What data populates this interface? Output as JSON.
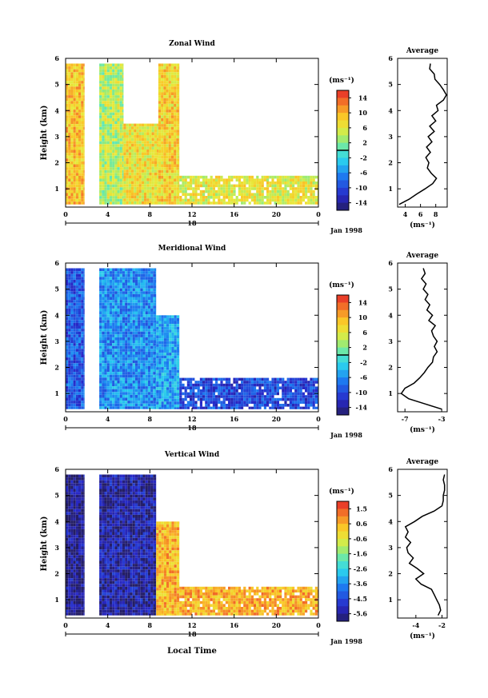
{
  "chart_data": [
    {
      "type": "heatmap",
      "title": "Zonal Wind",
      "ylabel": "Height (km)",
      "ylim": [
        0.3,
        6.0
      ],
      "y_ticks": [
        "1",
        "2",
        "3",
        "4",
        "5",
        "6"
      ],
      "x_ticks": [
        "0",
        "4",
        "8",
        "12",
        "16",
        "20",
        "0"
      ],
      "day_label": "18",
      "date_label": "Jan 1998",
      "colorbar": {
        "unit": "(ms⁻¹)",
        "ticks": [
          "14",
          "10",
          "6",
          "2",
          "-2",
          "-6",
          "-10",
          "-14"
        ],
        "range": [
          -16,
          16
        ],
        "contour_level": 0
      },
      "field": {
        "description_hours": [
          0,
          24
        ],
        "band_top_km": 5.8,
        "coverage": [
          {
            "t0": 0.0,
            "t1": 1.8,
            "top": 5.8,
            "value": 9
          },
          {
            "t0": 1.8,
            "t1": 3.2,
            "top": 0.0,
            "value": null
          },
          {
            "t0": 3.2,
            "t1": 5.5,
            "top": 5.8,
            "value": 4
          },
          {
            "t0": 5.5,
            "t1": 8.8,
            "top": 3.5,
            "value": 7
          },
          {
            "t0": 8.8,
            "t1": 10.8,
            "top": 5.8,
            "value": 8
          },
          {
            "t0": 10.8,
            "t1": 24.0,
            "top": 1.5,
            "value": 6
          }
        ]
      },
      "average": {
        "title": "Average",
        "xlabel": "(ms⁻¹)",
        "x_ticks": [
          "4",
          "6",
          "8"
        ],
        "xlim": [
          3,
          9.5
        ],
        "y_ticks": [
          "1",
          "2",
          "3",
          "4",
          "5",
          "6"
        ],
        "profile_height_km": [
          0.4,
          0.6,
          0.8,
          1.0,
          1.2,
          1.4,
          1.6,
          1.8,
          2.0,
          2.2,
          2.4,
          2.6,
          2.8,
          3.0,
          3.2,
          3.4,
          3.6,
          3.8,
          4.0,
          4.2,
          4.4,
          4.6,
          4.8,
          5.0,
          5.2,
          5.4,
          5.6,
          5.8
        ],
        "profile_value": [
          3.2,
          4.5,
          5.5,
          6.6,
          7.6,
          8.1,
          7.4,
          6.9,
          7.1,
          6.7,
          7.3,
          6.8,
          7.5,
          7.0,
          7.8,
          7.2,
          8.0,
          7.5,
          8.3,
          8.1,
          9.0,
          9.4,
          9.0,
          8.5,
          7.9,
          7.8,
          7.2,
          7.3
        ]
      }
    },
    {
      "type": "heatmap",
      "title": "Meridional Wind",
      "ylabel": "Height (km)",
      "ylim": [
        0.3,
        6.0
      ],
      "y_ticks": [
        "1",
        "2",
        "3",
        "4",
        "5",
        "6"
      ],
      "x_ticks": [
        "0",
        "4",
        "8",
        "12",
        "16",
        "20",
        "0"
      ],
      "day_label": "18",
      "date_label": "Jan 1998",
      "colorbar": {
        "unit": "(ms⁻¹)",
        "ticks": [
          "14",
          "10",
          "6",
          "2",
          "-2",
          "-6",
          "-10",
          "-14"
        ],
        "range": [
          -16,
          16
        ],
        "contour_level": 0
      },
      "field": {
        "description_hours": [
          0,
          24
        ],
        "band_top_km": 5.8,
        "coverage": [
          {
            "t0": 0.0,
            "t1": 1.8,
            "top": 5.8,
            "value": -9
          },
          {
            "t0": 1.8,
            "t1": 3.2,
            "top": 0.0,
            "value": null
          },
          {
            "t0": 3.2,
            "t1": 8.6,
            "top": 5.8,
            "value": -6
          },
          {
            "t0": 8.6,
            "t1": 10.8,
            "top": 4.0,
            "value": -5
          },
          {
            "t0": 10.8,
            "t1": 24.0,
            "top": 1.6,
            "value": -10
          }
        ]
      },
      "average": {
        "title": "Average",
        "xlabel": "(ms⁻¹)",
        "x_ticks": [
          "-7",
          "-3"
        ],
        "xlim": [
          -7.8,
          -2.4
        ],
        "y_ticks": [
          "1",
          "2",
          "3",
          "4",
          "5",
          "6"
        ],
        "profile_height_km": [
          0.4,
          0.6,
          0.8,
          1.0,
          1.2,
          1.4,
          1.6,
          1.8,
          2.0,
          2.2,
          2.4,
          2.6,
          2.8,
          3.0,
          3.2,
          3.4,
          3.6,
          3.8,
          4.0,
          4.2,
          4.4,
          4.6,
          4.8,
          5.0,
          5.2,
          5.4,
          5.6,
          5.8
        ],
        "profile_value": [
          -3.0,
          -4.8,
          -6.6,
          -7.4,
          -7.0,
          -6.0,
          -5.4,
          -4.9,
          -4.5,
          -4.0,
          -3.9,
          -3.5,
          -3.8,
          -3.5,
          -3.9,
          -4.1,
          -3.7,
          -4.4,
          -4.0,
          -4.6,
          -4.3,
          -4.8,
          -4.5,
          -5.0,
          -4.7,
          -5.2,
          -4.8,
          -5.0
        ]
      }
    },
    {
      "type": "heatmap",
      "title": "Vertical Wind",
      "ylabel": "Height (km)",
      "ylim": [
        0.3,
        6.0
      ],
      "y_ticks": [
        "1",
        "2",
        "3",
        "4",
        "5",
        "6"
      ],
      "x_ticks": [
        "0",
        "4",
        "8",
        "12",
        "16",
        "20",
        "0"
      ],
      "day_label": "18",
      "date_label": "Jan 1998",
      "xlabel": "Local Time",
      "colorbar": {
        "unit": "(ms⁻¹)",
        "ticks": [
          "1.5",
          "0.6",
          "-0.6",
          "-1.6",
          "-2.6",
          "-3.6",
          "-4.5",
          "-5.6"
        ],
        "range": [
          -6.0,
          2.0
        ]
      },
      "field": {
        "description_hours": [
          0,
          24
        ],
        "band_top_km": 6.0,
        "coverage": [
          {
            "t0": 0.0,
            "t1": 1.8,
            "top": 5.8,
            "value": -5.6
          },
          {
            "t0": 1.8,
            "t1": 3.2,
            "top": 0.0,
            "value": null
          },
          {
            "t0": 3.2,
            "t1": 8.6,
            "top": 5.8,
            "value": -5.4
          },
          {
            "t0": 8.6,
            "t1": 10.8,
            "top": 4.0,
            "value": 0.4
          },
          {
            "t0": 10.8,
            "t1": 24.0,
            "top": 1.5,
            "value": 0.5
          }
        ]
      },
      "average": {
        "title": "Average",
        "xlabel": "(ms⁻¹)",
        "x_ticks": [
          "-4",
          "-2"
        ],
        "xlim": [
          -5.4,
          -1.6
        ],
        "y_ticks": [
          "1",
          "2",
          "3",
          "4",
          "5",
          "6"
        ],
        "profile_height_km": [
          0.4,
          0.6,
          0.8,
          1.0,
          1.2,
          1.4,
          1.6,
          1.8,
          2.0,
          2.2,
          2.4,
          2.6,
          2.8,
          3.0,
          3.2,
          3.4,
          3.6,
          3.8,
          4.0,
          4.2,
          4.4,
          4.6,
          4.8,
          5.0,
          5.2,
          5.4,
          5.6,
          5.8
        ],
        "profile_value": [
          -2.3,
          -2.1,
          -2.2,
          -2.4,
          -2.6,
          -2.8,
          -3.6,
          -4.0,
          -3.4,
          -3.9,
          -4.5,
          -4.2,
          -4.6,
          -4.7,
          -4.4,
          -4.8,
          -4.6,
          -4.8,
          -4.1,
          -3.5,
          -2.6,
          -2.0,
          -1.9,
          -1.9,
          -1.8,
          -1.8,
          -1.9,
          -1.8
        ]
      }
    }
  ]
}
